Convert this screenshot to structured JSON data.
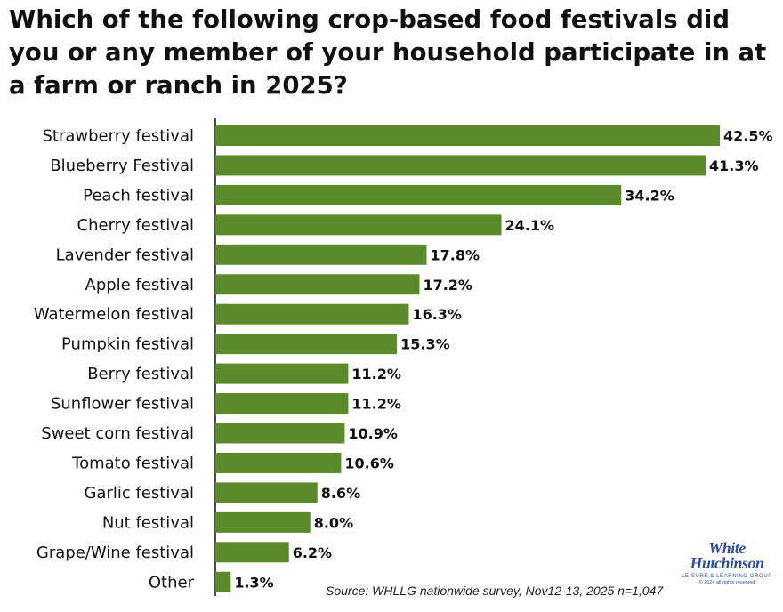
{
  "chart_data": {
    "type": "bar",
    "orientation": "horizontal",
    "title": "Which of the following crop-based food festivals did you or any member of your household participate in at a farm or ranch in 2025?",
    "categories": [
      "Strawberry festival",
      "Blueberry Festival",
      "Peach festival",
      "Cherry festival",
      "Lavender festival",
      "Apple festival",
      "Watermelon festival",
      "Pumpkin festival",
      "Berry festival",
      "Sunflower festival",
      "Sweet corn festival",
      "Tomato festival",
      "Garlic festival",
      "Nut festival",
      "Grape/Wine festival",
      "Other"
    ],
    "values": [
      42.5,
      41.3,
      34.2,
      24.1,
      17.8,
      17.2,
      16.3,
      15.3,
      11.2,
      11.2,
      10.9,
      10.6,
      8.6,
      8.0,
      6.2,
      1.3
    ],
    "value_labels": [
      "42.5%",
      "41.3%",
      "34.2%",
      "24.1%",
      "17.8%",
      "17.2%",
      "16.3%",
      "15.3%",
      "11.2%",
      "11.2%",
      "10.9%",
      "10.6%",
      "8.6%",
      "8.0%",
      "6.2%",
      "1.3%"
    ],
    "unit": "%",
    "xlabel": "",
    "ylabel": "",
    "xlim": [
      0,
      42.5
    ],
    "grid": false,
    "legend": "none",
    "bar_color": "#5b8a2b"
  },
  "source": "Source: WHLLG nationwide survey, Nov12-13, 2025 n=1,047",
  "logo": {
    "line1": "White",
    "line2": "Hutchinson",
    "line3": "LEISURE & LEARNING GROUP",
    "copyright": "© 2024 all rights reserved"
  }
}
